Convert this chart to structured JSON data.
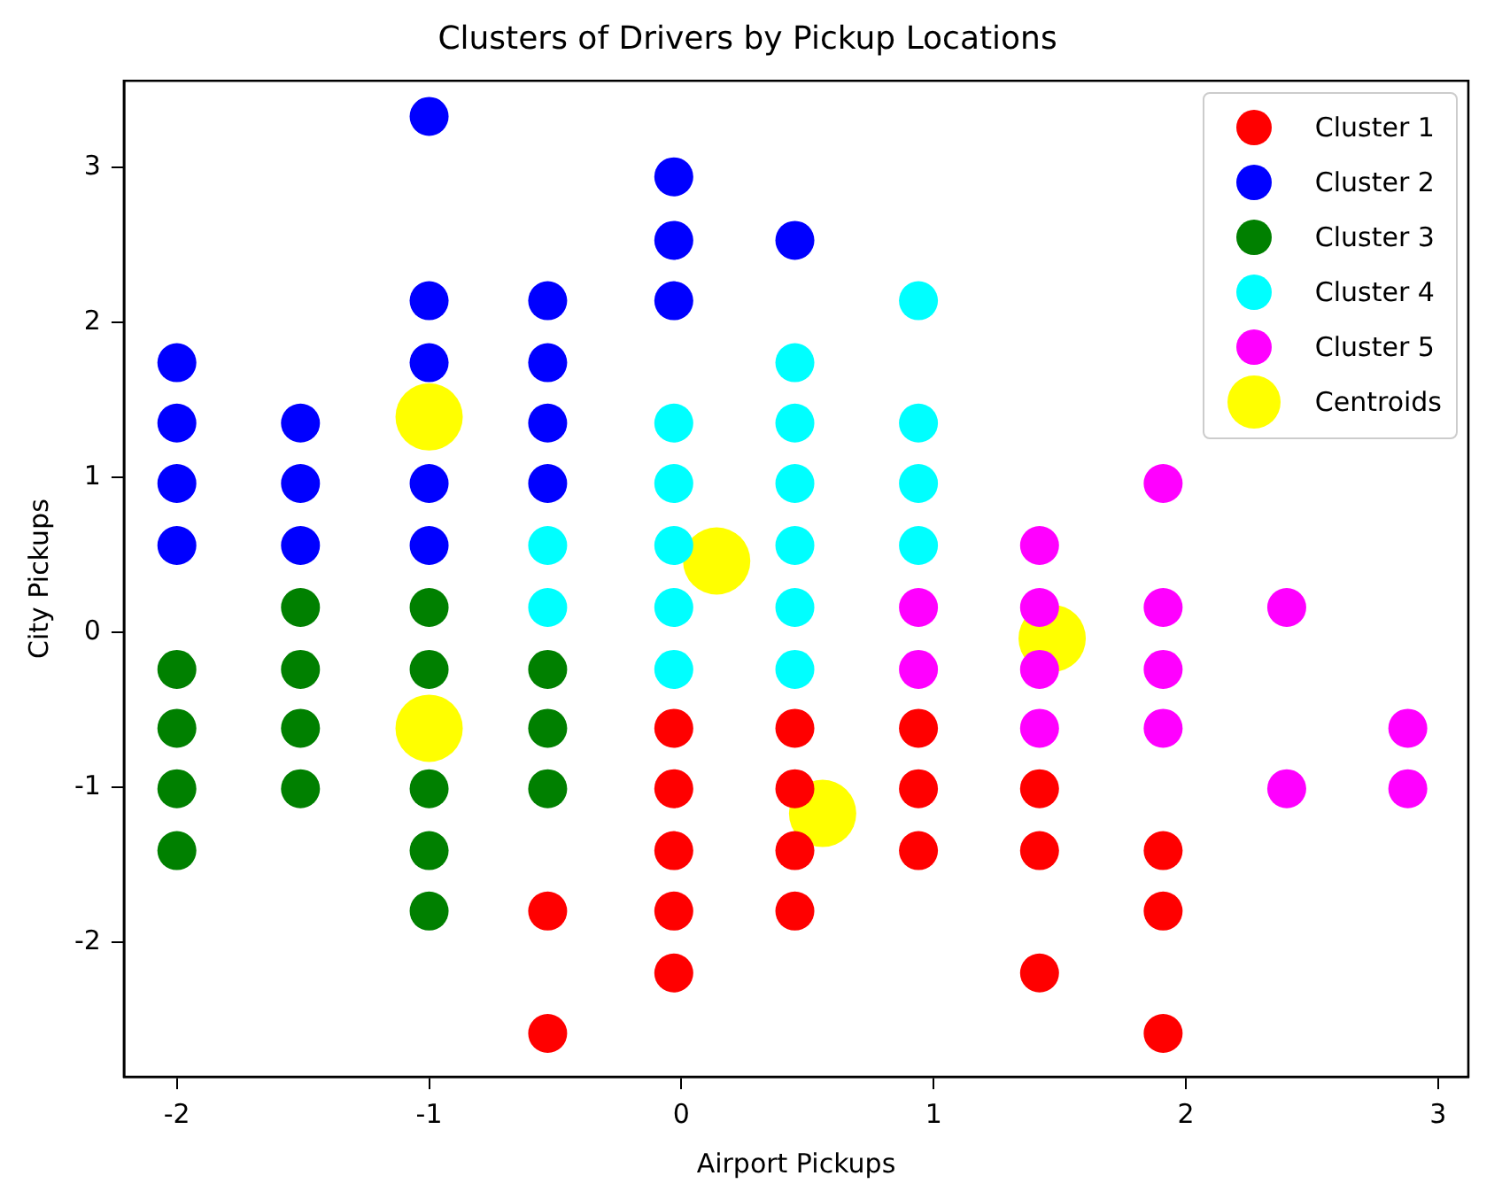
{
  "chart_data": {
    "type": "scatter",
    "title": "Clusters of Drivers by Pickup Locations",
    "xlabel": "Airport Pickups",
    "ylabel": "City Pickups",
    "xlim": [
      -2.21,
      3.12
    ],
    "xticks": [
      -2,
      -1,
      0,
      1,
      2,
      3
    ],
    "ylim": [
      -2.87,
      3.56
    ],
    "yticks": [
      -2,
      -1,
      0,
      1,
      2,
      3
    ],
    "grid": false,
    "legend": "top right",
    "marker": "circle",
    "series": [
      {
        "name": "Cluster 1",
        "color": "#ff0000",
        "x": [
          -0.53,
          -0.53,
          -0.03,
          -0.03,
          -0.03,
          -0.03,
          -0.03,
          0.45,
          0.45,
          0.45,
          0.45,
          0.94,
          0.94,
          0.94,
          1.42,
          1.42,
          1.42,
          1.91,
          1.91,
          1.91
        ],
        "values": [
          -1.8,
          -2.59,
          -0.62,
          -1.01,
          -1.41,
          -1.8,
          -2.2,
          -0.62,
          -1.01,
          -1.41,
          -1.8,
          -0.62,
          -1.01,
          -1.41,
          -1.01,
          -1.41,
          -2.2,
          -1.41,
          -1.8,
          -2.59
        ]
      },
      {
        "name": "Cluster 2",
        "color": "#0000ff",
        "x": [
          -2,
          -2,
          -2,
          -2,
          -1.51,
          -1.51,
          -1.51,
          -1,
          -1,
          -1,
          -1,
          -1,
          -0.53,
          -0.53,
          -0.53,
          -0.53,
          -0.03,
          -0.03,
          -0.03,
          0.45
        ],
        "values": [
          1.74,
          1.35,
          0.96,
          0.56,
          1.35,
          0.96,
          0.56,
          3.33,
          2.14,
          1.74,
          0.96,
          0.56,
          2.14,
          1.74,
          1.35,
          0.96,
          2.94,
          2.53,
          2.14,
          2.53
        ]
      },
      {
        "name": "Cluster 3",
        "color": "#008000",
        "x": [
          -2,
          -2,
          -2,
          -2,
          -1.51,
          -1.51,
          -1.51,
          -1.51,
          -1,
          -1,
          -1,
          -1,
          -1,
          -0.53,
          -0.53,
          -0.53
        ],
        "values": [
          -0.24,
          -0.62,
          -1.01,
          -1.41,
          0.16,
          -0.24,
          -0.62,
          -1.01,
          0.16,
          -0.24,
          -1.01,
          -1.41,
          -1.8,
          -0.24,
          -0.62,
          -1.01
        ]
      },
      {
        "name": "Cluster 4",
        "color": "#00ffff",
        "x": [
          -0.53,
          -0.53,
          -0.03,
          -0.03,
          -0.03,
          -0.03,
          -0.03,
          0.45,
          0.45,
          0.45,
          0.45,
          0.45,
          0.45,
          0.94,
          0.94,
          0.94,
          0.94
        ],
        "values": [
          0.56,
          0.16,
          1.35,
          0.96,
          0.56,
          0.16,
          -0.24,
          1.74,
          1.35,
          0.96,
          0.56,
          0.16,
          -0.24,
          2.14,
          1.35,
          0.96,
          0.56
        ]
      },
      {
        "name": "Cluster 5",
        "color": "#ff00ff",
        "x": [
          0.94,
          0.94,
          1.42,
          1.42,
          1.42,
          1.42,
          1.91,
          1.91,
          1.91,
          1.91,
          2.4,
          2.4,
          2.88,
          2.88
        ],
        "values": [
          0.16,
          -0.24,
          0.56,
          0.16,
          -0.24,
          -0.62,
          0.96,
          0.16,
          -0.24,
          -0.62,
          0.16,
          -1.01,
          -0.62,
          -1.01
        ]
      },
      {
        "name": "Centroids",
        "color": "#ffff00",
        "x": [
          -1,
          0.14,
          -1,
          0.56,
          1.47
        ],
        "values": [
          1.39,
          0.46,
          -0.62,
          -1.17,
          -0.04
        ]
      }
    ]
  }
}
